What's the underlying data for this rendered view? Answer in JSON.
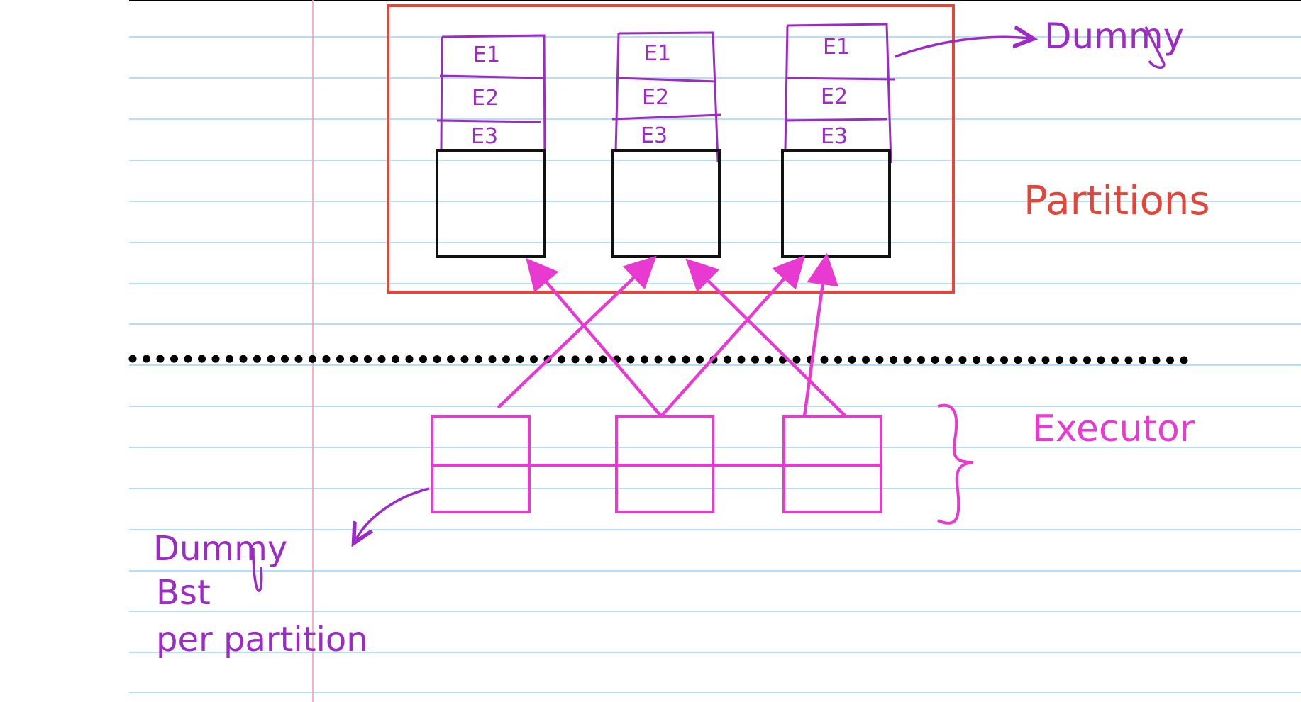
{
  "colors": {
    "ruled_line": "#9fd3ef",
    "margin_line": "#f29db5",
    "partition_box": "#e0473a",
    "purple_ink": "#9b2bc4",
    "magenta_ink": "#e83ad0",
    "black_ink": "#111111",
    "dotted_separator": "#000000"
  },
  "labels": {
    "partitions": "Partitions",
    "executor": "Executor",
    "dummy_top": "Dummy",
    "note_line1": "Dummy",
    "note_line2": "Bst",
    "note_line3": "per partition"
  },
  "partitions": [
    {
      "events": [
        "E1",
        "E2",
        "E3"
      ]
    },
    {
      "events": [
        "E1",
        "E2",
        "E3"
      ]
    },
    {
      "events": [
        "E1",
        "E2",
        "E3"
      ]
    }
  ],
  "icons": {
    "brace": "right-curly-brace-icon",
    "arrow": "arrow-icon"
  }
}
